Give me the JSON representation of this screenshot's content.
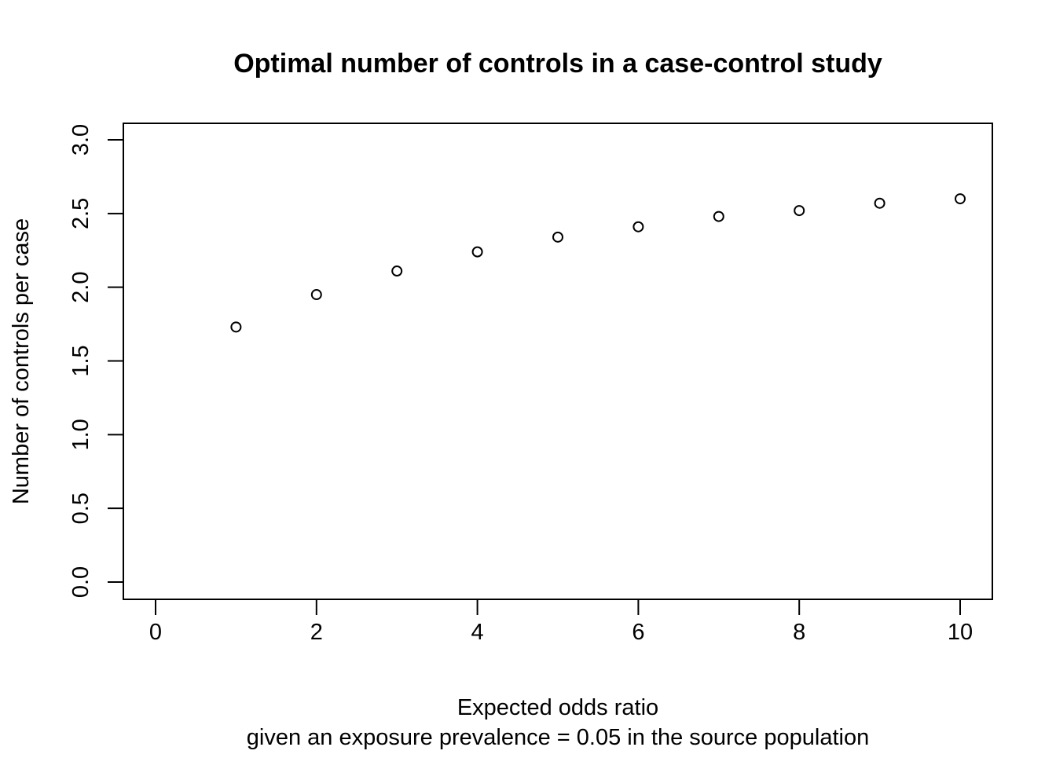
{
  "chart_data": {
    "type": "scatter",
    "title": "Optimal number of controls in a case-control study",
    "xlabel": "Expected odds ratio",
    "xlabel_line2": "given an exposure prevalence = 0.05 in the source population",
    "ylabel": "Number of controls per case",
    "xlim": [
      0,
      10
    ],
    "ylim": [
      0,
      3
    ],
    "x_ticks": [
      "0",
      "2",
      "4",
      "6",
      "8",
      "10"
    ],
    "y_ticks": [
      "0.0",
      "0.5",
      "1.0",
      "1.5",
      "2.0",
      "2.5",
      "3.0"
    ],
    "grid": false,
    "marker": "open-circle",
    "point_color": "#000000",
    "series": [
      {
        "x": [
          1,
          2,
          3,
          4,
          5,
          6,
          7,
          8,
          9,
          10
        ],
        "y": [
          1.73,
          1.95,
          2.11,
          2.24,
          2.34,
          2.41,
          2.48,
          2.52,
          2.57,
          2.6
        ]
      }
    ]
  }
}
